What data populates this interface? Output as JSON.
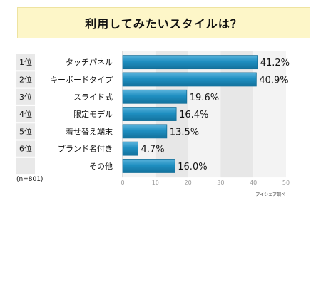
{
  "title": "利用してみたいスタイルは？",
  "note": "(n=801)",
  "source": "アイシェア調べ",
  "colors": {
    "bar": "#1f8fc1",
    "bar_light": "#5bb4dc",
    "title_bg": "#fdf6c8"
  },
  "chart_data": {
    "type": "bar",
    "orientation": "horizontal",
    "ranks": [
      "1位",
      "2位",
      "3位",
      "4位",
      "5位",
      "6位",
      ""
    ],
    "categories": [
      "タッチパネル",
      "キーボードタイプ",
      "スライド式",
      "限定モデル",
      "着せ替え端末",
      "ブランド名付き",
      "その他"
    ],
    "values": [
      41.2,
      40.9,
      19.6,
      16.4,
      13.5,
      4.7,
      16.0
    ],
    "value_labels": [
      "41.2%",
      "40.9%",
      "19.6%",
      "16.4%",
      "13.5%",
      "4.7%",
      "16.0%"
    ],
    "xlim": [
      0,
      50
    ],
    "xticks": [
      "0",
      "10",
      "20",
      "30",
      "40",
      "50"
    ],
    "grid": true,
    "legend": "none"
  }
}
